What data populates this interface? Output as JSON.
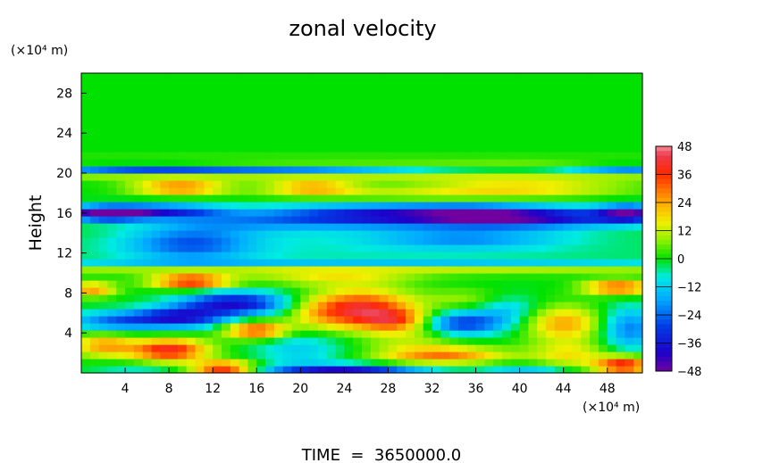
{
  "chart_data": {
    "type": "heatmap",
    "title": "zonal velocity",
    "ylabel": "Height",
    "y_unit": "(×10⁴ m)",
    "x_unit": "(×10⁴ m)",
    "footer": "TIME  =  3650000.0",
    "xlim": [
      0,
      51.2
    ],
    "ylim": [
      0,
      30
    ],
    "x_ticks": [
      4,
      8,
      12,
      16,
      20,
      24,
      28,
      32,
      36,
      40,
      44,
      48
    ],
    "y_ticks": [
      4,
      8,
      12,
      16,
      20,
      24,
      28
    ],
    "colorbar": {
      "range": [
        -48,
        48
      ],
      "ticks": [
        48,
        36,
        24,
        12,
        0,
        -12,
        -24,
        -36,
        -48
      ],
      "tick_labels": [
        "48",
        "36",
        "24",
        "12",
        "0",
        "−12",
        "−24",
        "−36",
        "−48"
      ]
    },
    "features": [
      {
        "x": 25,
        "y": 25,
        "sx": 40,
        "sy": 4,
        "v": 0
      },
      {
        "x": 5,
        "y": 20.6,
        "sx": 7,
        "sy": 0.25,
        "v": -38
      },
      {
        "x": 50,
        "y": 20.6,
        "sx": 4,
        "sy": 0.25,
        "v": -32
      },
      {
        "x": 20,
        "y": 20.4,
        "sx": 8,
        "sy": 0.3,
        "v": -18
      },
      {
        "x": 28,
        "y": 20.8,
        "sx": 14,
        "sy": 0.2,
        "v": -10
      },
      {
        "x": 25,
        "y": 21.3,
        "sx": 30,
        "sy": 0.25,
        "v": 14
      },
      {
        "x": 25,
        "y": 19.6,
        "sx": 30,
        "sy": 0.3,
        "v": 10
      },
      {
        "x": 9,
        "y": 18.6,
        "sx": 3,
        "sy": 0.5,
        "v": 30
      },
      {
        "x": 21,
        "y": 18.6,
        "sx": 3,
        "sy": 0.5,
        "v": 24
      },
      {
        "x": 40,
        "y": 18.6,
        "sx": 7,
        "sy": 0.6,
        "v": 18
      },
      {
        "x": 30,
        "y": 17.8,
        "sx": 8,
        "sy": 0.5,
        "v": 10
      },
      {
        "x": 2,
        "y": 16,
        "sx": 2.5,
        "sy": 0.5,
        "v": -44
      },
      {
        "x": 7,
        "y": 16.2,
        "sx": 4,
        "sy": 0.5,
        "v": -32
      },
      {
        "x": 28,
        "y": 15.8,
        "sx": 7,
        "sy": 0.8,
        "v": -38
      },
      {
        "x": 36,
        "y": 15.8,
        "sx": 4,
        "sy": 0.7,
        "v": -24
      },
      {
        "x": 43,
        "y": 15.6,
        "sx": 5,
        "sy": 0.7,
        "v": -34
      },
      {
        "x": 50,
        "y": 16,
        "sx": 2,
        "sy": 0.6,
        "v": -40
      },
      {
        "x": 15,
        "y": 15.2,
        "sx": 6,
        "sy": 0.8,
        "v": -14
      },
      {
        "x": 10,
        "y": 13,
        "sx": 4,
        "sy": 1.2,
        "v": -22
      },
      {
        "x": 35,
        "y": 13.5,
        "sx": 6,
        "sy": 0.7,
        "v": -16
      },
      {
        "x": 25,
        "y": 12.5,
        "sx": 25,
        "sy": 1.5,
        "v": -6
      },
      {
        "x": 25,
        "y": 10.2,
        "sx": 30,
        "sy": 0.3,
        "v": 16
      },
      {
        "x": 25,
        "y": 11.1,
        "sx": 30,
        "sy": 0.3,
        "v": -10
      },
      {
        "x": 10,
        "y": 9.2,
        "sx": 2.5,
        "sy": 0.5,
        "v": 40
      },
      {
        "x": 49,
        "y": 8.6,
        "sx": 2.2,
        "sy": 0.5,
        "v": 34
      },
      {
        "x": 1,
        "y": 8.4,
        "sx": 1.5,
        "sy": 0.5,
        "v": 26
      },
      {
        "x": 23,
        "y": 9.5,
        "sx": 5,
        "sy": 0.5,
        "v": 14
      },
      {
        "x": 14,
        "y": 7,
        "sx": 3.5,
        "sy": 0.8,
        "v": -38
      },
      {
        "x": 9,
        "y": 5.6,
        "sx": 3,
        "sy": 0.7,
        "v": -36
      },
      {
        "x": 3,
        "y": 5.2,
        "sx": 3,
        "sy": 0.7,
        "v": -22
      },
      {
        "x": 26,
        "y": 6.6,
        "sx": 3,
        "sy": 1.3,
        "v": 34
      },
      {
        "x": 29,
        "y": 5.3,
        "sx": 2.5,
        "sy": 0.8,
        "v": 28
      },
      {
        "x": 22,
        "y": 6,
        "sx": 2.5,
        "sy": 1.3,
        "v": 18
      },
      {
        "x": 16,
        "y": 4.3,
        "sx": 2,
        "sy": 0.6,
        "v": 36
      },
      {
        "x": 35,
        "y": 7.5,
        "sx": 3,
        "sy": 0.7,
        "v": 8
      },
      {
        "x": 34.5,
        "y": 5,
        "sx": 3,
        "sy": 0.8,
        "v": -32
      },
      {
        "x": 44,
        "y": 5,
        "sx": 2.5,
        "sy": 1.2,
        "v": 24
      },
      {
        "x": 50,
        "y": 4.5,
        "sx": 1.8,
        "sy": 1.5,
        "v": -22
      },
      {
        "x": 39,
        "y": 6.5,
        "sx": 2,
        "sy": 1,
        "v": -12
      },
      {
        "x": 8,
        "y": 2.3,
        "sx": 2.5,
        "sy": 0.8,
        "v": 40
      },
      {
        "x": 2,
        "y": 2.8,
        "sx": 2,
        "sy": 0.8,
        "v": 24
      },
      {
        "x": 13,
        "y": 0.5,
        "sx": 2,
        "sy": 0.5,
        "v": 40
      },
      {
        "x": 20,
        "y": 2.5,
        "sx": 3,
        "sy": 1.5,
        "v": -12
      },
      {
        "x": 24,
        "y": 0.3,
        "sx": 5,
        "sy": 0.4,
        "v": -38
      },
      {
        "x": 33,
        "y": 1.8,
        "sx": 4,
        "sy": 0.6,
        "v": 28
      },
      {
        "x": 44.5,
        "y": 1.8,
        "sx": 2.5,
        "sy": 1,
        "v": 16
      },
      {
        "x": 49.5,
        "y": 0.8,
        "sx": 1.8,
        "sy": 0.6,
        "v": 40
      },
      {
        "x": 41,
        "y": 0.4,
        "sx": 3,
        "sy": 0.4,
        "v": -14
      },
      {
        "x": 30,
        "y": 3.5,
        "sx": 3,
        "sy": 1,
        "v": 10
      },
      {
        "x": 5,
        "y": 0.5,
        "sx": 3,
        "sy": 0.4,
        "v": -8
      }
    ]
  }
}
